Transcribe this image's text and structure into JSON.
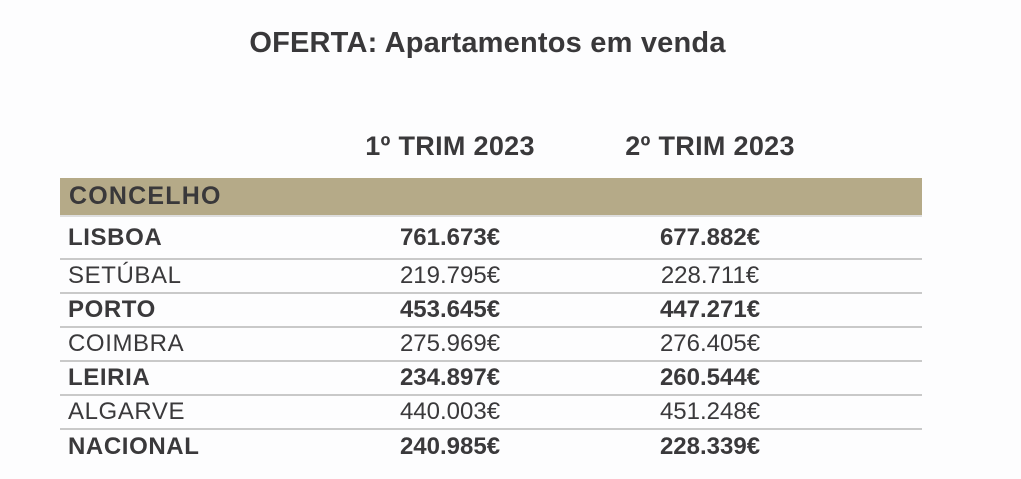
{
  "title": "OFERTA: Apartamentos em venda",
  "table": {
    "concelho_header": "CONCELHO",
    "period_headers": {
      "q1": "1º TRIM 2023",
      "q2": "2º TRIM 2023"
    },
    "rows": [
      {
        "label": "LISBOA",
        "q1": "761.673€",
        "q2": "677.882€",
        "emphasis": true
      },
      {
        "label": "SETÚBAL",
        "q1": "219.795€",
        "q2": "228.711€",
        "emphasis": false
      },
      {
        "label": "PORTO",
        "q1": "453.645€",
        "q2": "447.271€",
        "emphasis": true
      },
      {
        "label": "COIMBRA",
        "q1": "275.969€",
        "q2": "276.405€",
        "emphasis": false
      },
      {
        "label": "LEIRIA",
        "q1": "234.897€",
        "q2": "260.544€",
        "emphasis": true
      },
      {
        "label": "ALGARVE",
        "q1": "440.003€",
        "q2": "451.248€",
        "emphasis": false
      },
      {
        "label": "NACIONAL",
        "q1": "240.985€",
        "q2": "228.339€",
        "emphasis": true
      }
    ]
  },
  "colors": {
    "header_bar": "#b5aa88",
    "text": "#3a393b",
    "divider": "#c9c9c9",
    "background": "#fdfdfe"
  },
  "chart_data": {
    "type": "table",
    "title": "OFERTA: Apartamentos em venda",
    "columns": [
      "CONCELHO",
      "1º TRIM 2023",
      "2º TRIM 2023"
    ],
    "rows": [
      [
        "LISBOA",
        "761.673€",
        "677.882€"
      ],
      [
        "SETÚBAL",
        "219.795€",
        "228.711€"
      ],
      [
        "PORTO",
        "453.645€",
        "447.271€"
      ],
      [
        "COIMBRA",
        "275.969€",
        "276.405€"
      ],
      [
        "LEIRIA",
        "234.897€",
        "260.544€"
      ],
      [
        "ALGARVE",
        "440.003€",
        "451.248€"
      ],
      [
        "NACIONAL",
        "240.985€",
        "228.339€"
      ]
    ],
    "values_numeric_eur": {
      "q1_trim_2023": [
        761673,
        219795,
        453645,
        275969,
        234897,
        440003,
        240985
      ],
      "q2_trim_2023": [
        677882,
        228711,
        447271,
        276405,
        260544,
        451248,
        228339
      ]
    },
    "currency": "EUR",
    "legend_position": "none",
    "grid": "horizontal-dividers"
  }
}
